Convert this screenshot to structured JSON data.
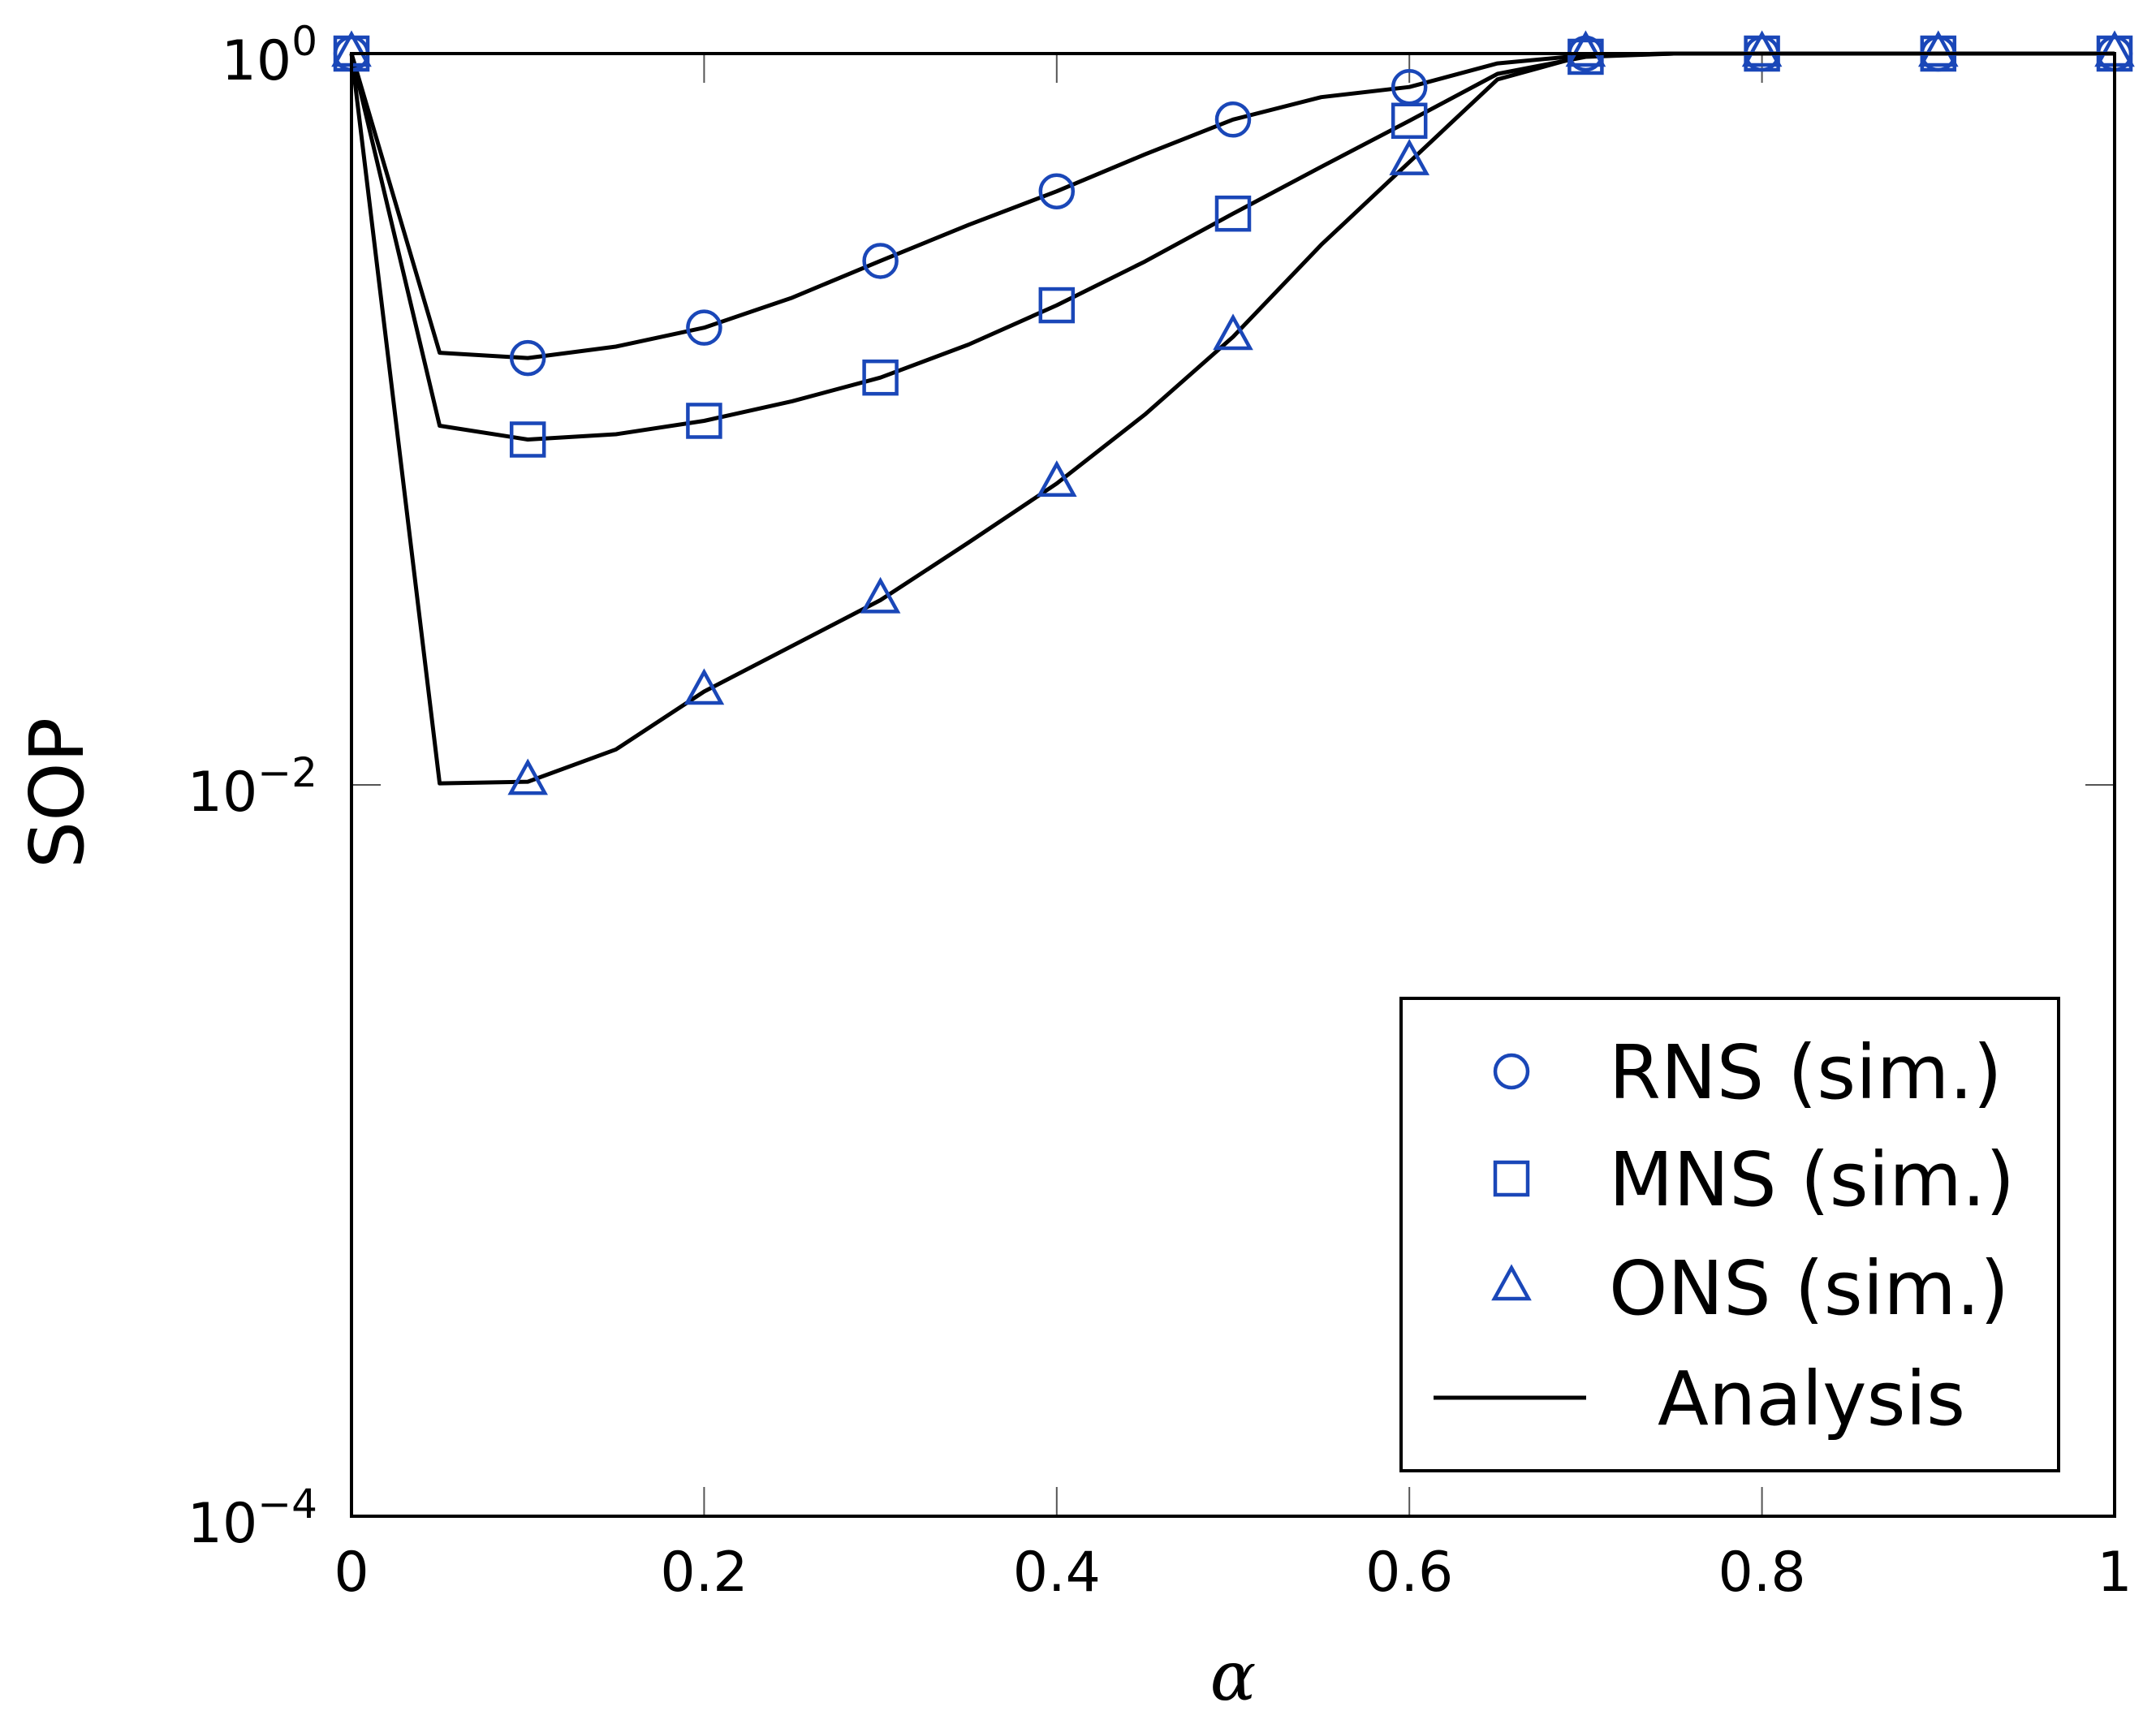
{
  "chart_data": {
    "type": "line",
    "title": "",
    "xlabel": "α",
    "ylabel": "SOP",
    "yscale": "log",
    "xlim": [
      0,
      1
    ],
    "ylim": [
      0.0001,
      1
    ],
    "grid": false,
    "legend_position": "bottom-right",
    "x_ticks": [
      0,
      0.2,
      0.4,
      0.6,
      0.8,
      1
    ],
    "x_tick_labels": [
      "0",
      "0.2",
      "0.4",
      "0.6",
      "0.8",
      "1"
    ],
    "y_ticks": [
      0.0001,
      0.01,
      1
    ],
    "y_tick_labels": [
      {
        "base": "10",
        "exp": "−4"
      },
      {
        "base": "10",
        "exp": "−2"
      },
      {
        "base": "10",
        "exp": "0"
      }
    ],
    "series": [
      {
        "name": "RNS (sim.)",
        "kind": "marker",
        "marker": "circle",
        "x": [
          0,
          0.1,
          0.2,
          0.3,
          0.4,
          0.5,
          0.6,
          0.7,
          0.8,
          0.9,
          1.0
        ],
        "y": [
          1.0,
          0.147,
          0.178,
          0.271,
          0.42,
          0.66,
          0.81,
          1.0,
          1.0,
          1.0,
          1.0
        ]
      },
      {
        "name": "MNS (sim.)",
        "kind": "marker",
        "marker": "square",
        "x": [
          0,
          0.1,
          0.2,
          0.3,
          0.4,
          0.5,
          0.6,
          0.7,
          0.8,
          0.9,
          1.0
        ],
        "y": [
          1.0,
          0.088,
          0.099,
          0.13,
          0.205,
          0.365,
          0.655,
          0.98,
          1.0,
          1.0,
          1.0
        ]
      },
      {
        "name": "ONS (sim.)",
        "kind": "marker",
        "marker": "triangle",
        "x": [
          0,
          0.1,
          0.2,
          0.3,
          0.4,
          0.5,
          0.6,
          0.7,
          0.8,
          0.9,
          1.0
        ],
        "y": [
          1.0,
          0.0102,
          0.018,
          0.032,
          0.0667,
          0.168,
          0.505,
          1.0,
          1.0,
          1.0,
          1.0
        ]
      },
      {
        "name": "Analysis",
        "kind": "line",
        "legend": true,
        "x": [
          0,
          0.05,
          0.1,
          0.15,
          0.2,
          0.25,
          0.3,
          0.35,
          0.4,
          0.45,
          0.5,
          0.55,
          0.6,
          0.65,
          0.7,
          0.75,
          0.8,
          0.85,
          0.9,
          0.95,
          1.0
        ],
        "y": [
          1.0,
          0.152,
          0.147,
          0.158,
          0.178,
          0.215,
          0.271,
          0.34,
          0.42,
          0.53,
          0.66,
          0.76,
          0.81,
          0.94,
          0.99,
          1.0,
          1.0,
          1.0,
          1.0,
          1.0,
          1.0
        ]
      },
      {
        "name": "Analysis",
        "kind": "line",
        "legend": false,
        "x": [
          0,
          0.05,
          0.1,
          0.15,
          0.2,
          0.25,
          0.3,
          0.35,
          0.4,
          0.45,
          0.5,
          0.55,
          0.6,
          0.65,
          0.7,
          0.75,
          0.8,
          0.85,
          0.9,
          0.95,
          1.0
        ],
        "y": [
          1.0,
          0.096,
          0.088,
          0.091,
          0.099,
          0.112,
          0.13,
          0.16,
          0.205,
          0.27,
          0.365,
          0.49,
          0.655,
          0.88,
          0.98,
          1.0,
          1.0,
          1.0,
          1.0,
          1.0,
          1.0
        ]
      },
      {
        "name": "Analysis",
        "kind": "line",
        "legend": false,
        "x": [
          0,
          0.05,
          0.1,
          0.15,
          0.2,
          0.25,
          0.3,
          0.35,
          0.4,
          0.45,
          0.5,
          0.55,
          0.6,
          0.65,
          0.7,
          0.75,
          0.8,
          0.85,
          0.9,
          0.95,
          1.0
        ],
        "y": [
          1.0,
          0.0101,
          0.0102,
          0.0125,
          0.018,
          0.024,
          0.032,
          0.046,
          0.0667,
          0.103,
          0.168,
          0.3,
          0.505,
          0.85,
          0.99,
          1.0,
          1.0,
          1.0,
          1.0,
          1.0,
          1.0
        ]
      }
    ],
    "colors": {
      "markers": "#1a47b8",
      "analysis": "#000000",
      "axes": "#000000"
    }
  }
}
